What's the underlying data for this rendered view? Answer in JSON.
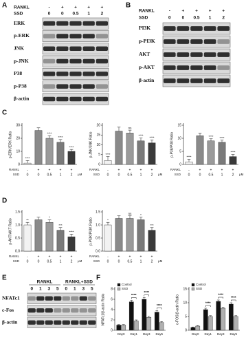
{
  "panels": {
    "a": "A",
    "b": "B",
    "c": "C",
    "d": "D",
    "e": "E",
    "f": "F"
  },
  "blot_a": {
    "row_labels": [
      "RANKL",
      "SSD"
    ],
    "rankl": [
      "-",
      "+",
      "+",
      "+",
      "+"
    ],
    "ssd": [
      "0",
      "0",
      "0.5",
      "1",
      "2"
    ],
    "proteins": [
      "ERK",
      "p-ERK",
      "JNK",
      "p-JNK",
      "P38",
      "p-P38",
      "β-actin"
    ]
  },
  "blot_b": {
    "row_labels": [
      "RANKL",
      "SSD"
    ],
    "rankl": [
      "-",
      "+",
      "+",
      "+",
      "+"
    ],
    "ssd": [
      "0",
      "0",
      "0.5",
      "1",
      "2"
    ],
    "proteins": [
      "PI3K",
      "p-PI3K",
      "AKT",
      "p-AKT",
      "β-actin"
    ]
  },
  "blot_e": {
    "groups": [
      "RANKL",
      "RANKL+SSD"
    ],
    "days": [
      "0",
      "1",
      "3",
      "5",
      "0",
      "1",
      "3",
      "5"
    ],
    "proteins": [
      "NFATc1",
      "c-Fos",
      "β-actin"
    ]
  },
  "chart_data": [
    {
      "type": "bar",
      "ylabel": "p-ERK/ERK Ratio",
      "row_labels": [
        "RANKL",
        "SSD"
      ],
      "rankl": [
        "-",
        "+",
        "+",
        "+",
        "+"
      ],
      "ssd": [
        "0",
        "0",
        "0.5",
        "1",
        "2"
      ],
      "unit": "μM",
      "values": [
        1,
        26,
        20,
        17,
        10
      ],
      "errors": [
        2,
        2,
        2,
        2,
        1.5
      ],
      "significance": [
        "****",
        null,
        "****",
        "****",
        "****"
      ],
      "colors": [
        "#f2f2f2",
        "#8a8a8a",
        "#9a9a9a",
        "#7a7a7a",
        "#3a3a3a"
      ],
      "ylim": [
        0,
        30
      ],
      "yticks": [
        0,
        10,
        20,
        30
      ]
    },
    {
      "type": "bar",
      "ylabel": "p-JNK/JNK Ratio",
      "row_labels": [
        "RANKL",
        "SSD"
      ],
      "rankl": [
        "-",
        "+",
        "+",
        "+",
        "+"
      ],
      "ssd": [
        "0",
        "0",
        "0.5",
        "1",
        "2"
      ],
      "unit": "μM",
      "values": [
        2,
        17,
        16,
        12,
        11
      ],
      "errors": [
        2,
        2,
        1.5,
        1.5,
        1.5
      ],
      "significance": [
        "****",
        null,
        "ns",
        "****",
        "****"
      ],
      "colors": [
        "#f2f2f2",
        "#8a8a8a",
        "#9a9a9a",
        "#7a7a7a",
        "#3a3a3a"
      ],
      "ylim": [
        0,
        20
      ],
      "yticks": [
        0,
        5,
        10,
        15,
        20
      ]
    },
    {
      "type": "bar",
      "ylabel": "p-P38/P38 Ratio",
      "row_labels": [
        "RANKL",
        "SSD"
      ],
      "rankl": [
        "-",
        "+",
        "+",
        "+",
        "+"
      ],
      "ssd": [
        "0",
        "0",
        "0.5",
        "1",
        "2"
      ],
      "unit": "μM",
      "values": [
        1,
        11,
        9,
        8.5,
        3
      ],
      "errors": [
        1,
        1,
        0.8,
        0.8,
        0.8
      ],
      "significance": [
        "****",
        null,
        "****",
        "****",
        "****"
      ],
      "colors": [
        "#f2f2f2",
        "#8a8a8a",
        "#9a9a9a",
        "#7a7a7a",
        "#3a3a3a"
      ],
      "ylim": [
        0,
        15
      ],
      "yticks": [
        0,
        5,
        10,
        15
      ]
    },
    {
      "type": "bar",
      "ylabel": "p-AKT/AKT Ratio",
      "row_labels": [
        "RANKL",
        "SSD"
      ],
      "rankl": [
        "-",
        "+",
        "+",
        "+",
        "+"
      ],
      "ssd": [
        "0",
        "0",
        "0.5",
        "1",
        "2"
      ],
      "unit": "μM",
      "values": [
        1,
        1.2,
        1.1,
        0.8,
        0.55
      ],
      "errors": [
        0.1,
        0.1,
        0.1,
        0.1,
        0.1
      ],
      "significance": [
        "**",
        null,
        "*",
        "***",
        "****"
      ],
      "colors": [
        "#f2f2f2",
        "#8a8a8a",
        "#9a9a9a",
        "#7a7a7a",
        "#3a3a3a"
      ],
      "ylim": [
        0,
        1.5
      ],
      "yticks": [
        {
          "value": 0,
          "label": "0.0"
        },
        {
          "value": 0.5,
          "label": "0.5"
        },
        {
          "value": 1,
          "label": "1.0"
        },
        {
          "value": 1.5,
          "label": "1.5"
        }
      ]
    },
    {
      "type": "bar",
      "ylabel": "p-PI3K/PI3K Ratio",
      "row_labels": [
        "RANKL",
        "SSD"
      ],
      "rankl": [
        "-",
        "+",
        "+",
        "+",
        "+"
      ],
      "ssd": [
        "0",
        "0",
        "0.5",
        "1",
        "2"
      ],
      "unit": "μM",
      "values": [
        1,
        1.25,
        1.25,
        1.2,
        0.8
      ],
      "errors": [
        0.1,
        0.1,
        0.1,
        0.1,
        0.1
      ],
      "significance": [
        "*",
        null,
        "ns",
        "*",
        "***"
      ],
      "colors": [
        "#f2f2f2",
        "#8a8a8a",
        "#9a9a9a",
        "#7a7a7a",
        "#3a3a3a"
      ],
      "ylim": [
        0,
        1.5
      ],
      "yticks": [
        {
          "value": 0,
          "label": "0.0"
        },
        {
          "value": 0.5,
          "label": "0.5"
        },
        {
          "value": 1,
          "label": "1.0"
        },
        {
          "value": 1.5,
          "label": "1.5"
        }
      ]
    },
    {
      "type": "grouped_bar",
      "ylabel": "NFATc1/β-actin Ratio",
      "categories": [
        "Day0",
        "Day1",
        "Day3",
        "Day5"
      ],
      "series": [
        {
          "name": "Control",
          "color": "#111111",
          "values": [
            1,
            5.5,
            6,
            3.5
          ],
          "errors": [
            0.1,
            0.3,
            0.3,
            0.3
          ]
        },
        {
          "name": "SSD",
          "color": "#b0b0b0",
          "values": [
            1,
            1.8,
            2.5,
            1.5
          ],
          "errors": [
            0.1,
            0.2,
            0.2,
            0.2
          ]
        }
      ],
      "significance": [
        null,
        "****",
        "****",
        "****"
      ],
      "ylim": [
        0,
        8
      ],
      "yticks": [
        0,
        2,
        4,
        6,
        8
      ]
    },
    {
      "type": "grouped_bar",
      "ylabel": "c-FOS/β-actin Ratio",
      "categories": [
        "Day0",
        "Day1",
        "Day3",
        "Day5"
      ],
      "series": [
        {
          "name": "Control",
          "color": "#111111",
          "values": [
            1,
            7.5,
            10.5,
            9.5
          ],
          "errors": [
            0.2,
            0.5,
            0.5,
            0.5
          ]
        },
        {
          "name": "SSD",
          "color": "#b0b0b0",
          "values": [
            1.5,
            5,
            8,
            5
          ],
          "errors": [
            0.2,
            0.3,
            0.4,
            0.3
          ]
        }
      ],
      "significance": [
        null,
        "****",
        "****",
        "****"
      ],
      "ylim": [
        0,
        15
      ],
      "yticks": [
        0,
        5,
        10,
        15
      ]
    }
  ]
}
